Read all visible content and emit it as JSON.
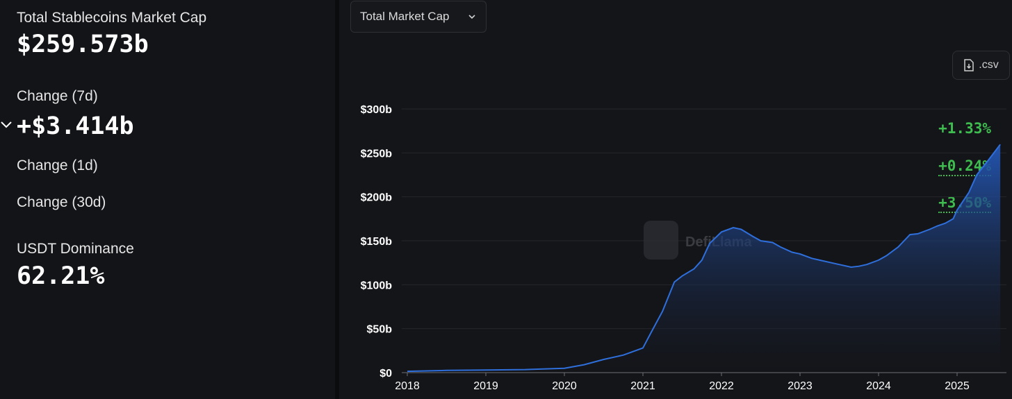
{
  "stats": {
    "total_label": "Total Stablecoins Market Cap",
    "total_value": "$259.573b",
    "change7d_label": "Change (7d)",
    "change7d_value": "+$3.414b",
    "change7d_pct": "+1.33%",
    "change1d_label": "Change (1d)",
    "change1d_pct": "+0.24%",
    "change30d_label": "Change (30d)",
    "change30d_pct": "+3.50%",
    "dominance_label": "USDT Dominance",
    "dominance_value": "62.21%"
  },
  "controls": {
    "dropdown_label": "Total Market Cap",
    "csv_label": ".csv"
  },
  "watermark": "DefiLlama",
  "colors": {
    "positive": "#3fbc4f",
    "line": "#2f6fdc",
    "background": "#141519"
  },
  "chart_data": {
    "type": "area",
    "title": "",
    "xlabel": "",
    "ylabel": "",
    "ylim": [
      0,
      300
    ],
    "y_ticks": [
      "$0",
      "$50b",
      "$100b",
      "$150b",
      "$200b",
      "$250b",
      "$300b"
    ],
    "x_ticks": [
      "2018",
      "2019",
      "2020",
      "2021",
      "2022",
      "2023",
      "2024",
      "2025"
    ],
    "series": [
      {
        "x": [
          2018.0,
          2018.5,
          2019.0,
          2019.5,
          2020.0,
          2020.25,
          2020.5,
          2020.75,
          2021.0,
          2021.1,
          2021.25,
          2021.4,
          2021.5,
          2021.65,
          2021.75,
          2021.85,
          2022.0,
          2022.15,
          2022.25,
          2022.4,
          2022.5,
          2022.65,
          2022.75,
          2022.9,
          2023.0,
          2023.15,
          2023.25,
          2023.4,
          2023.5,
          2023.65,
          2023.75,
          2023.85,
          2024.0,
          2024.1,
          2024.25,
          2024.4,
          2024.5,
          2024.65,
          2024.75,
          2024.85,
          2024.95,
          2025.0,
          2025.15,
          2025.25,
          2025.4,
          2025.55
        ],
        "y": [
          1.5,
          2.5,
          3,
          3.5,
          5,
          9,
          15,
          20,
          28,
          45,
          70,
          103,
          110,
          118,
          128,
          147,
          160,
          165,
          163,
          155,
          150,
          148,
          143,
          137,
          135,
          130,
          128,
          125,
          123,
          120,
          121,
          123,
          128,
          133,
          143,
          157,
          158,
          163,
          167,
          170,
          175,
          185,
          205,
          225,
          242,
          259.6
        ]
      }
    ]
  }
}
